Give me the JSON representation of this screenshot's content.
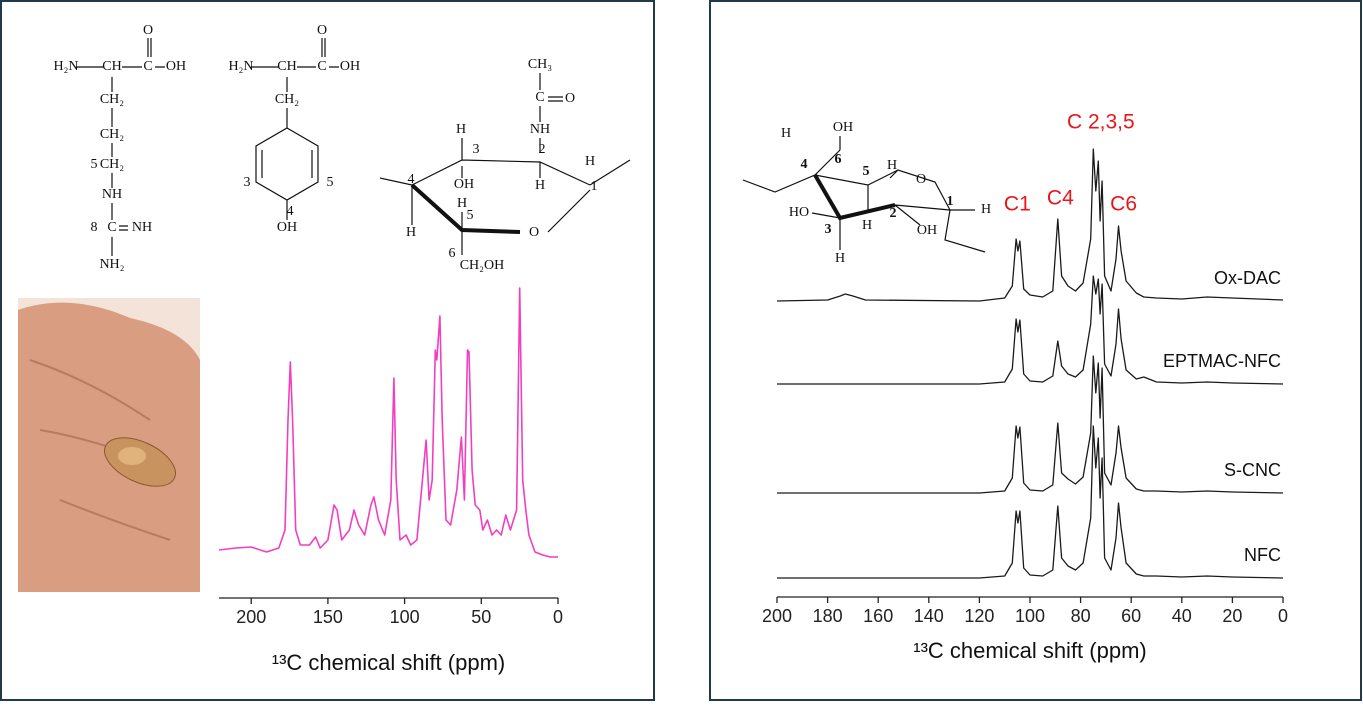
{
  "chart_data": [
    {
      "type": "line",
      "xlabel": "¹³C chemical shift (ppm)",
      "xlim": [
        221,
        0
      ],
      "xticks": [
        200,
        150,
        100,
        50,
        0
      ],
      "x": [
        221,
        210,
        200,
        190,
        182,
        178,
        176,
        174.5,
        173,
        171,
        168,
        162,
        158,
        155,
        150,
        146,
        144,
        141,
        136,
        133,
        130,
        126,
        122,
        120,
        117,
        113,
        109,
        107,
        105.5,
        103,
        99,
        96,
        92,
        89,
        86,
        84,
        82,
        80,
        79,
        77,
        75.5,
        73,
        70,
        66,
        63,
        61,
        59,
        58,
        56,
        54,
        51,
        49,
        46,
        43,
        40,
        37,
        34,
        31,
        27,
        25,
        23,
        21,
        19,
        15,
        10,
        5,
        0
      ],
      "series": [
        {
          "color": "#f23fbf",
          "values": [
            7,
            9,
            10,
            5,
            9,
            27,
            137,
            195,
            137,
            27,
            12,
            12,
            20,
            9,
            17,
            52,
            47,
            17,
            27,
            47,
            32,
            22,
            52,
            60,
            37,
            22,
            57,
            179,
            77,
            17,
            22,
            12,
            17,
            67,
            117,
            57,
            77,
            207,
            197,
            241,
            137,
            37,
            32,
            67,
            120,
            57,
            207,
            205,
            87,
            52,
            47,
            27,
            37,
            22,
            27,
            22,
            42,
            27,
            47,
            269,
            77,
            47,
            22,
            5,
            2,
            0,
            0
          ]
        }
      ]
    },
    {
      "type": "line",
      "xlabel": "¹³C chemical shift (ppm)",
      "xlim": [
        200,
        0
      ],
      "xticks": [
        200,
        180,
        160,
        140,
        120,
        100,
        80,
        60,
        40,
        20,
        0
      ],
      "x": [
        200,
        180,
        175,
        173,
        170,
        165,
        120,
        110,
        107,
        105.5,
        104.8,
        104,
        102.5,
        100,
        95,
        91,
        89,
        87.5,
        85,
        82,
        79,
        76,
        75,
        74,
        73,
        72.3,
        71.5,
        70.5,
        68,
        66,
        65,
        64,
        62,
        58,
        55,
        50,
        40,
        30,
        20,
        0
      ],
      "series": [
        {
          "name": "Ox-DAC",
          "color": "#1a1a1a",
          "values": [
            0,
            1,
            5,
            7,
            5,
            1,
            0,
            3,
            15,
            62,
            50,
            60,
            12,
            6,
            4,
            10,
            82,
            25,
            15,
            10,
            18,
            62,
            152,
            110,
            140,
            80,
            120,
            25,
            10,
            42,
            75,
            50,
            20,
            8,
            4,
            3,
            2,
            4,
            3,
            1
          ]
        },
        {
          "name": "EPTMAC-NFC",
          "color": "#1a1a1a",
          "values": [
            0,
            0,
            0,
            0,
            0,
            0,
            0,
            2,
            15,
            65,
            52,
            64,
            10,
            3,
            2,
            8,
            43,
            18,
            10,
            7,
            14,
            60,
            108,
            90,
            105,
            70,
            100,
            20,
            8,
            40,
            75,
            45,
            14,
            5,
            7,
            2,
            1,
            2,
            1,
            0
          ]
        },
        {
          "name": "S-CNC",
          "color": "#1a1a1a",
          "values": [
            0,
            0,
            0,
            0,
            0,
            0,
            0,
            2,
            15,
            67,
            55,
            66,
            10,
            3,
            2,
            8,
            70,
            20,
            14,
            9,
            16,
            60,
            137,
            100,
            130,
            75,
            125,
            20,
            8,
            40,
            67,
            45,
            15,
            4,
            2,
            2,
            1,
            2,
            1,
            0
          ]
        },
        {
          "name": "NFC",
          "color": "#1a1a1a",
          "values": [
            0,
            0,
            0,
            0,
            0,
            0,
            0,
            2,
            15,
            67,
            55,
            67,
            10,
            3,
            2,
            8,
            72,
            20,
            12,
            8,
            15,
            60,
            152,
            110,
            140,
            80,
            120,
            20,
            8,
            40,
            75,
            50,
            15,
            4,
            2,
            2,
            1,
            2,
            1,
            0
          ]
        }
      ],
      "annotations": [
        {
          "text": "C1",
          "x": 105
        },
        {
          "text": "C4",
          "x": 88
        },
        {
          "text": "C 2,3,5",
          "x": 72
        },
        {
          "text": "C6",
          "x": 63
        }
      ],
      "annotation_color": "#e8161b"
    }
  ],
  "structures": {
    "arginine": [
      "H₂N",
      "CH",
      "C",
      "O",
      "OH",
      "CH₂",
      "CH₂",
      "5",
      "CH₂",
      "NH",
      "8",
      "C",
      "NH",
      "NH₂"
    ],
    "tyrosine": [
      "H₂N",
      "CH",
      "C",
      "O",
      "OH",
      "CH₂",
      "3",
      "5",
      "4",
      "OH"
    ],
    "glcnac": [
      "CH₃",
      "C",
      "O",
      "NH",
      "H",
      "3",
      "2",
      "H",
      "1",
      "OH",
      "H",
      "4",
      "H",
      "5",
      "O",
      "H",
      "6",
      "CH₂OH"
    ],
    "glucose": [
      "OH",
      "H",
      "6",
      "5",
      "H",
      "O",
      "4",
      "1",
      "H",
      "HO",
      "3",
      "2",
      "OH",
      "H",
      "H"
    ]
  }
}
